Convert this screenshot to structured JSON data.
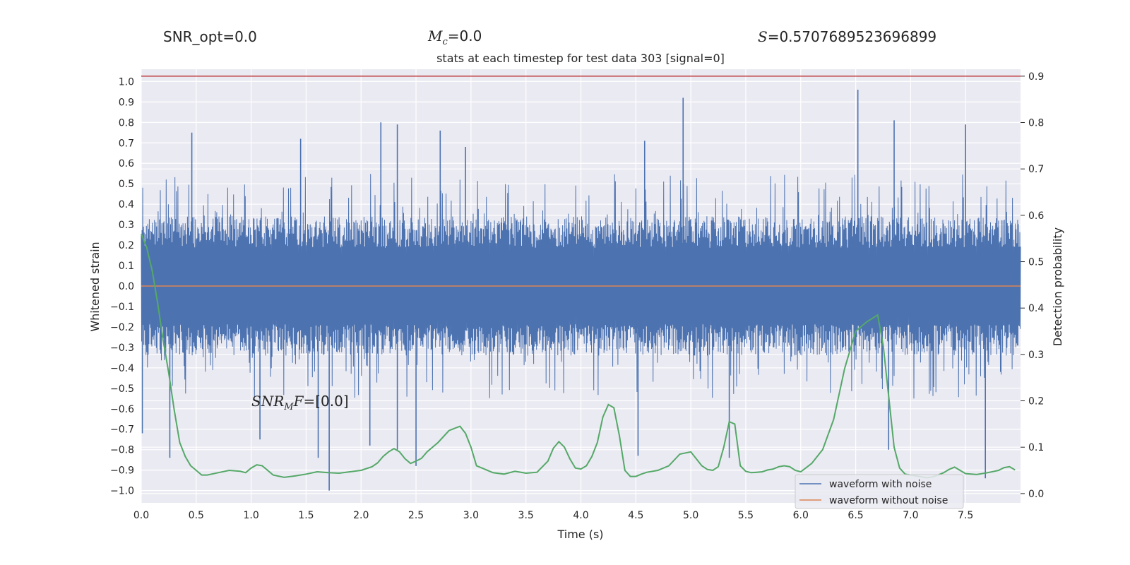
{
  "header": {
    "snr_opt": "SNR_opt=0.0",
    "mc_symbol": "M",
    "mc_sub": "c",
    "mc_value": "=0.0",
    "s_symbol": "S",
    "s_value": "=0.5707689523696899",
    "snr_mf_symbol": "SNR",
    "snr_mf_sub": "M",
    "snr_mf_rest": "F",
    "snr_mf_value": "=[0.0]"
  },
  "chart_data": {
    "type": "line",
    "title": "stats at each timestep for test data 303 [signal=0]",
    "xlabel": "Time (s)",
    "ylabel": "Whitened strain",
    "ylabel_right": "Detection probability",
    "xlim": [
      0.0,
      8.0
    ],
    "ylim": [
      -1.06,
      1.06
    ],
    "ylim_right": [
      -0.02,
      0.915
    ],
    "x_ticks": [
      "0.0",
      "0.5",
      "1.0",
      "1.5",
      "2.0",
      "2.5",
      "3.0",
      "3.5",
      "4.0",
      "4.5",
      "5.0",
      "5.5",
      "6.0",
      "6.5",
      "7.0",
      "7.5"
    ],
    "y_ticks": [
      "1.0",
      "0.9",
      "0.8",
      "0.7",
      "0.6",
      "0.5",
      "0.4",
      "0.3",
      "0.2",
      "0.1",
      "0.0",
      "−0.1",
      "−0.2",
      "−0.3",
      "−0.4",
      "−0.5",
      "−0.6",
      "−0.7",
      "−0.8",
      "−0.9",
      "−1.0"
    ],
    "y_ticks_right": [
      "0.9",
      "0.8",
      "0.7",
      "0.6",
      "0.5",
      "0.4",
      "0.3",
      "0.2",
      "0.1",
      "0.0"
    ],
    "threshold": 0.9,
    "grid": true,
    "legend_position": "lower-right",
    "colors": {
      "noise": "#4c72b0",
      "clean": "#dd8452",
      "prob": "#55a868",
      "threshold": "#c44e52",
      "background": "#eaeaf2",
      "grid": "#ffffff"
    },
    "series": [
      {
        "name": "waveform with noise",
        "envelope_upper": 0.55,
        "envelope_lower": -0.55,
        "peaks": [
          {
            "t": 0.46,
            "v": 0.75
          },
          {
            "t": 1.45,
            "v": 0.72
          },
          {
            "t": 2.18,
            "v": 0.8
          },
          {
            "t": 2.33,
            "v": 0.79
          },
          {
            "t": 2.72,
            "v": 0.76
          },
          {
            "t": 2.95,
            "v": 0.68
          },
          {
            "t": 4.58,
            "v": 0.71
          },
          {
            "t": 4.93,
            "v": 0.92
          },
          {
            "t": 6.52,
            "v": 0.96
          },
          {
            "t": 6.85,
            "v": 0.81
          },
          {
            "t": 7.5,
            "v": 0.79
          },
          {
            "t": 0.01,
            "v": -0.72
          },
          {
            "t": 0.26,
            "v": -0.84
          },
          {
            "t": 1.08,
            "v": -0.75
          },
          {
            "t": 1.61,
            "v": -0.84
          },
          {
            "t": 1.71,
            "v": -1.0
          },
          {
            "t": 2.08,
            "v": -0.78
          },
          {
            "t": 2.33,
            "v": -0.8
          },
          {
            "t": 2.5,
            "v": -0.88
          },
          {
            "t": 4.52,
            "v": -0.83
          },
          {
            "t": 5.35,
            "v": -0.84
          },
          {
            "t": 6.8,
            "v": -0.8
          },
          {
            "t": 7.68,
            "v": -0.94
          }
        ]
      },
      {
        "name": "waveform without noise",
        "x": [
          0.0,
          8.0
        ],
        "y": [
          0.0,
          0.0
        ]
      },
      {
        "name": "Detection probability",
        "axis": "right",
        "x": [
          0.0,
          0.05,
          0.1,
          0.15,
          0.2,
          0.25,
          0.3,
          0.35,
          0.4,
          0.45,
          0.5,
          0.55,
          0.6,
          0.7,
          0.8,
          0.9,
          0.95,
          1.0,
          1.05,
          1.1,
          1.15,
          1.2,
          1.3,
          1.4,
          1.5,
          1.6,
          1.7,
          1.8,
          1.9,
          2.0,
          2.1,
          2.15,
          2.2,
          2.25,
          2.3,
          2.35,
          2.4,
          2.45,
          2.5,
          2.55,
          2.6,
          2.7,
          2.8,
          2.9,
          2.95,
          3.0,
          3.05,
          3.1,
          3.2,
          3.3,
          3.4,
          3.5,
          3.6,
          3.7,
          3.75,
          3.8,
          3.85,
          3.9,
          3.95,
          4.0,
          4.05,
          4.1,
          4.15,
          4.2,
          4.25,
          4.3,
          4.35,
          4.4,
          4.45,
          4.5,
          4.55,
          4.6,
          4.7,
          4.8,
          4.9,
          5.0,
          5.05,
          5.1,
          5.15,
          5.2,
          5.25,
          5.3,
          5.35,
          5.4,
          5.45,
          5.5,
          5.55,
          5.6,
          5.65,
          5.7,
          5.75,
          5.8,
          5.85,
          5.9,
          5.95,
          6.0,
          6.1,
          6.2,
          6.3,
          6.4,
          6.5,
          6.6,
          6.7,
          6.75,
          6.8,
          6.85,
          6.9,
          6.95,
          7.0,
          7.05,
          7.1,
          7.15,
          7.2,
          7.25,
          7.3,
          7.35,
          7.4,
          7.5,
          7.6,
          7.7,
          7.8,
          7.85,
          7.9,
          7.95
        ],
        "y": [
          0.56,
          0.53,
          0.48,
          0.41,
          0.33,
          0.26,
          0.18,
          0.11,
          0.08,
          0.06,
          0.05,
          0.04,
          0.04,
          0.045,
          0.05,
          0.048,
          0.045,
          0.055,
          0.062,
          0.06,
          0.05,
          0.04,
          0.035,
          0.038,
          0.042,
          0.047,
          0.045,
          0.044,
          0.047,
          0.05,
          0.058,
          0.066,
          0.08,
          0.09,
          0.097,
          0.09,
          0.075,
          0.065,
          0.07,
          0.076,
          0.09,
          0.11,
          0.136,
          0.145,
          0.13,
          0.1,
          0.06,
          0.055,
          0.045,
          0.042,
          0.048,
          0.044,
          0.046,
          0.07,
          0.098,
          0.112,
          0.1,
          0.075,
          0.055,
          0.053,
          0.06,
          0.08,
          0.11,
          0.165,
          0.192,
          0.185,
          0.125,
          0.05,
          0.037,
          0.037,
          0.042,
          0.046,
          0.05,
          0.06,
          0.085,
          0.09,
          0.075,
          0.06,
          0.052,
          0.05,
          0.058,
          0.1,
          0.155,
          0.15,
          0.06,
          0.048,
          0.045,
          0.046,
          0.047,
          0.051,
          0.053,
          0.058,
          0.06,
          0.058,
          0.05,
          0.047,
          0.065,
          0.095,
          0.16,
          0.27,
          0.35,
          0.37,
          0.385,
          0.32,
          0.21,
          0.1,
          0.055,
          0.042,
          0.04,
          0.038,
          0.036,
          0.034,
          0.036,
          0.04,
          0.045,
          0.052,
          0.057,
          0.043,
          0.041,
          0.045,
          0.05,
          0.056,
          0.058,
          0.051
        ]
      }
    ]
  }
}
